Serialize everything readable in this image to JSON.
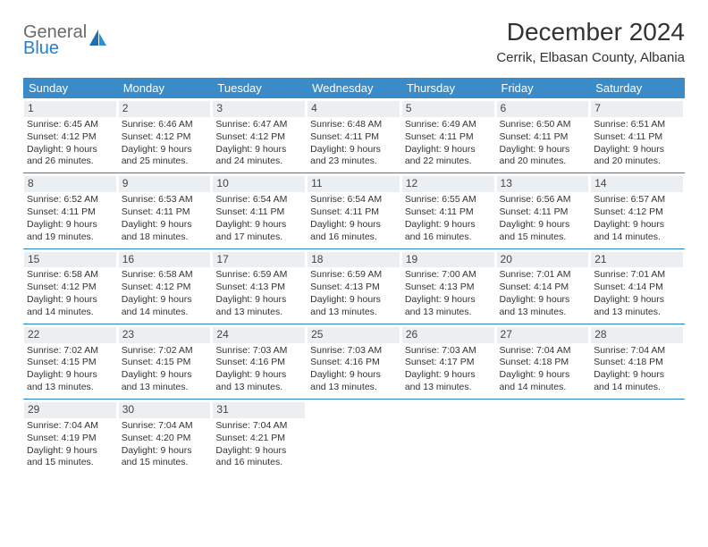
{
  "logo": {
    "top": "General",
    "bottom": "Blue"
  },
  "title": "December 2024",
  "location": "Cerrik, Elbasan County, Albania",
  "colors": {
    "header_bg": "#3b8bc8",
    "header_text": "#ffffff",
    "row_divider": "#2a7fc9",
    "daynum_bg": "#eceff2",
    "logo_gray": "#6a6a6a",
    "logo_blue": "#2a7fc9"
  },
  "weekdays": [
    "Sunday",
    "Monday",
    "Tuesday",
    "Wednesday",
    "Thursday",
    "Friday",
    "Saturday"
  ],
  "weeks": [
    [
      {
        "n": "1",
        "sr": "6:45 AM",
        "ss": "4:12 PM",
        "dl": "9 hours and 26 minutes."
      },
      {
        "n": "2",
        "sr": "6:46 AM",
        "ss": "4:12 PM",
        "dl": "9 hours and 25 minutes."
      },
      {
        "n": "3",
        "sr": "6:47 AM",
        "ss": "4:12 PM",
        "dl": "9 hours and 24 minutes."
      },
      {
        "n": "4",
        "sr": "6:48 AM",
        "ss": "4:11 PM",
        "dl": "9 hours and 23 minutes."
      },
      {
        "n": "5",
        "sr": "6:49 AM",
        "ss": "4:11 PM",
        "dl": "9 hours and 22 minutes."
      },
      {
        "n": "6",
        "sr": "6:50 AM",
        "ss": "4:11 PM",
        "dl": "9 hours and 20 minutes."
      },
      {
        "n": "7",
        "sr": "6:51 AM",
        "ss": "4:11 PM",
        "dl": "9 hours and 20 minutes."
      }
    ],
    [
      {
        "n": "8",
        "sr": "6:52 AM",
        "ss": "4:11 PM",
        "dl": "9 hours and 19 minutes."
      },
      {
        "n": "9",
        "sr": "6:53 AM",
        "ss": "4:11 PM",
        "dl": "9 hours and 18 minutes."
      },
      {
        "n": "10",
        "sr": "6:54 AM",
        "ss": "4:11 PM",
        "dl": "9 hours and 17 minutes."
      },
      {
        "n": "11",
        "sr": "6:54 AM",
        "ss": "4:11 PM",
        "dl": "9 hours and 16 minutes."
      },
      {
        "n": "12",
        "sr": "6:55 AM",
        "ss": "4:11 PM",
        "dl": "9 hours and 16 minutes."
      },
      {
        "n": "13",
        "sr": "6:56 AM",
        "ss": "4:11 PM",
        "dl": "9 hours and 15 minutes."
      },
      {
        "n": "14",
        "sr": "6:57 AM",
        "ss": "4:12 PM",
        "dl": "9 hours and 14 minutes."
      }
    ],
    [
      {
        "n": "15",
        "sr": "6:58 AM",
        "ss": "4:12 PM",
        "dl": "9 hours and 14 minutes."
      },
      {
        "n": "16",
        "sr": "6:58 AM",
        "ss": "4:12 PM",
        "dl": "9 hours and 14 minutes."
      },
      {
        "n": "17",
        "sr": "6:59 AM",
        "ss": "4:13 PM",
        "dl": "9 hours and 13 minutes."
      },
      {
        "n": "18",
        "sr": "6:59 AM",
        "ss": "4:13 PM",
        "dl": "9 hours and 13 minutes."
      },
      {
        "n": "19",
        "sr": "7:00 AM",
        "ss": "4:13 PM",
        "dl": "9 hours and 13 minutes."
      },
      {
        "n": "20",
        "sr": "7:01 AM",
        "ss": "4:14 PM",
        "dl": "9 hours and 13 minutes."
      },
      {
        "n": "21",
        "sr": "7:01 AM",
        "ss": "4:14 PM",
        "dl": "9 hours and 13 minutes."
      }
    ],
    [
      {
        "n": "22",
        "sr": "7:02 AM",
        "ss": "4:15 PM",
        "dl": "9 hours and 13 minutes."
      },
      {
        "n": "23",
        "sr": "7:02 AM",
        "ss": "4:15 PM",
        "dl": "9 hours and 13 minutes."
      },
      {
        "n": "24",
        "sr": "7:03 AM",
        "ss": "4:16 PM",
        "dl": "9 hours and 13 minutes."
      },
      {
        "n": "25",
        "sr": "7:03 AM",
        "ss": "4:16 PM",
        "dl": "9 hours and 13 minutes."
      },
      {
        "n": "26",
        "sr": "7:03 AM",
        "ss": "4:17 PM",
        "dl": "9 hours and 13 minutes."
      },
      {
        "n": "27",
        "sr": "7:04 AM",
        "ss": "4:18 PM",
        "dl": "9 hours and 14 minutes."
      },
      {
        "n": "28",
        "sr": "7:04 AM",
        "ss": "4:18 PM",
        "dl": "9 hours and 14 minutes."
      }
    ],
    [
      {
        "n": "29",
        "sr": "7:04 AM",
        "ss": "4:19 PM",
        "dl": "9 hours and 15 minutes."
      },
      {
        "n": "30",
        "sr": "7:04 AM",
        "ss": "4:20 PM",
        "dl": "9 hours and 15 minutes."
      },
      {
        "n": "31",
        "sr": "7:04 AM",
        "ss": "4:21 PM",
        "dl": "9 hours and 16 minutes."
      },
      null,
      null,
      null,
      null
    ]
  ],
  "labels": {
    "sunrise": "Sunrise:",
    "sunset": "Sunset:",
    "daylight": "Daylight:"
  }
}
